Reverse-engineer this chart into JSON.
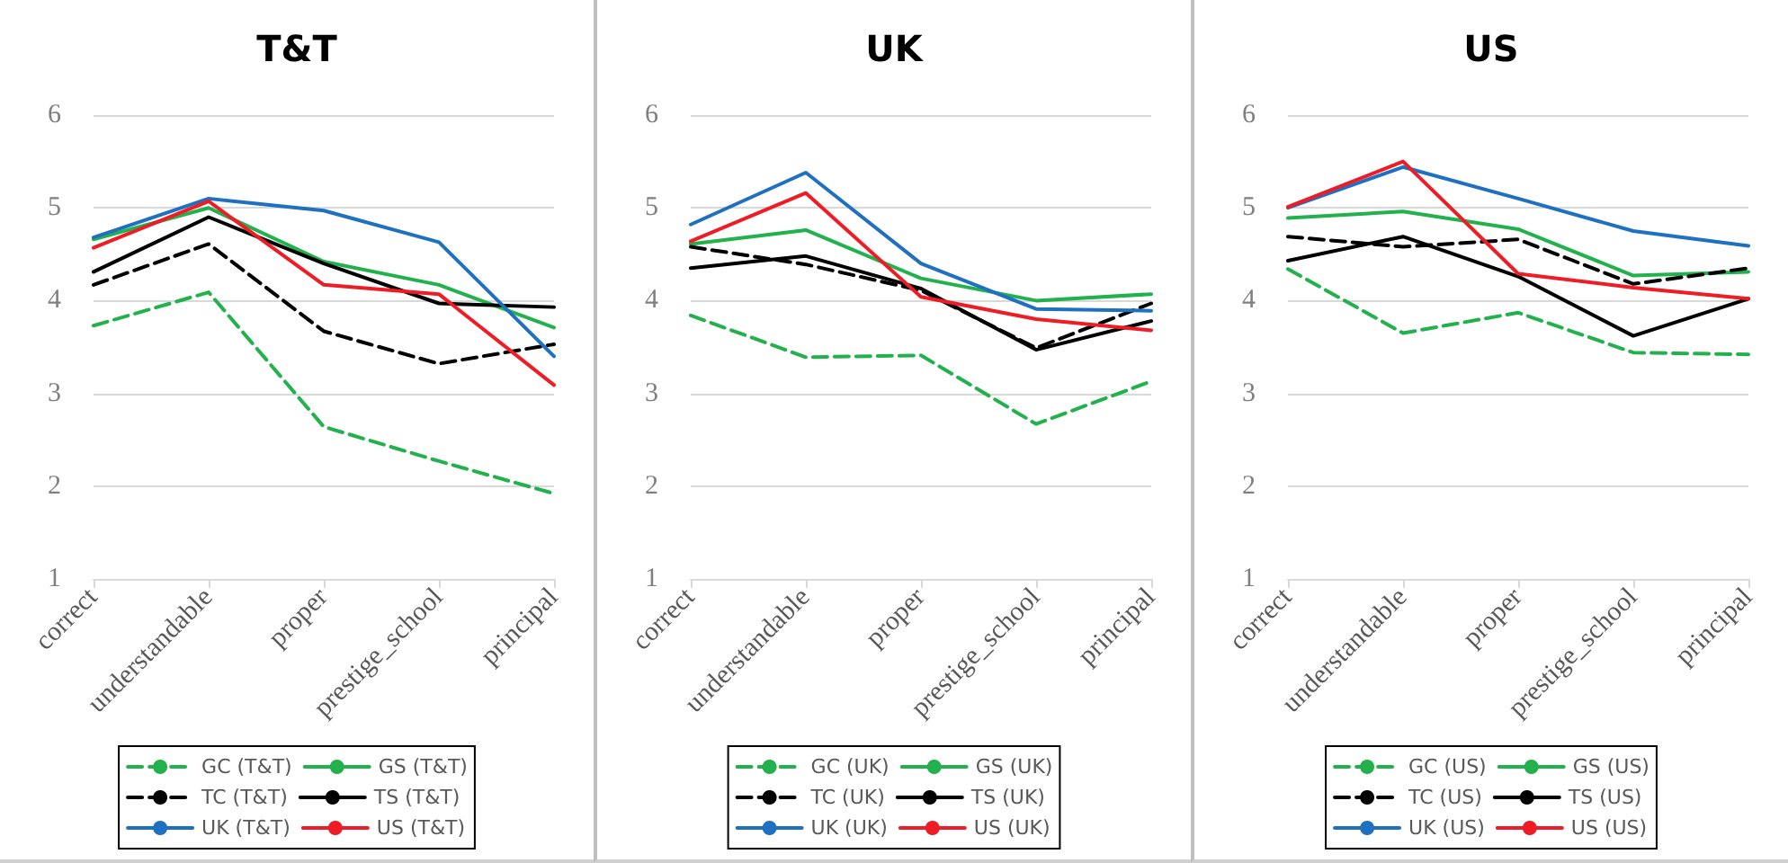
{
  "chart_data": [
    {
      "type": "line",
      "title": "T&T",
      "categories": [
        "correct",
        "understandable",
        "proper",
        "prestige_school",
        "principal"
      ],
      "ylim": [
        1,
        6
      ],
      "yticks": [
        1,
        2,
        3,
        4,
        5,
        6
      ],
      "grid": "y",
      "legend": "bottom",
      "marker": "none",
      "series": [
        {
          "name": "GC (T&T)",
          "color": "#22b14c",
          "line_style": "dashed",
          "values": [
            3.73,
            4.09,
            2.64,
            2.27,
            1.92
          ]
        },
        {
          "name": "GS (T&T)",
          "color": "#22b14c",
          "line_style": "solid",
          "values": [
            4.66,
            5.0,
            4.42,
            4.17,
            3.71
          ]
        },
        {
          "name": "TC (T&T)",
          "color": "#000000",
          "line_style": "dashed",
          "values": [
            4.17,
            4.61,
            3.67,
            3.32,
            3.53
          ]
        },
        {
          "name": "TS (T&T)",
          "color": "#000000",
          "line_style": "solid",
          "values": [
            4.31,
            4.9,
            4.4,
            3.97,
            3.93
          ]
        },
        {
          "name": "UK (T&T)",
          "color": "#1f70c1",
          "line_style": "solid",
          "values": [
            4.68,
            5.1,
            4.97,
            4.63,
            3.4
          ]
        },
        {
          "name": "US (T&T)",
          "color": "#ee1c25",
          "line_style": "solid",
          "values": [
            4.57,
            5.07,
            4.17,
            4.07,
            3.09
          ]
        }
      ]
    },
    {
      "type": "line",
      "title": "UK",
      "categories": [
        "correct",
        "understandable",
        "proper",
        "prestige_school",
        "principal"
      ],
      "ylim": [
        1,
        6
      ],
      "yticks": [
        1,
        2,
        3,
        4,
        5,
        6
      ],
      "grid": "y",
      "legend": "bottom",
      "marker": "none",
      "series": [
        {
          "name": "GC (UK)",
          "color": "#22b14c",
          "line_style": "dashed",
          "values": [
            3.84,
            3.39,
            3.41,
            2.67,
            3.13
          ]
        },
        {
          "name": "GS (UK)",
          "color": "#22b14c",
          "line_style": "solid",
          "values": [
            4.61,
            4.76,
            4.24,
            4.0,
            4.07
          ]
        },
        {
          "name": "TC (UK)",
          "color": "#000000",
          "line_style": "dashed",
          "values": [
            4.58,
            4.39,
            4.11,
            3.49,
            3.97
          ]
        },
        {
          "name": "TS (UK)",
          "color": "#000000",
          "line_style": "solid",
          "values": [
            4.35,
            4.48,
            4.13,
            3.47,
            3.78
          ]
        },
        {
          "name": "UK (UK)",
          "color": "#1f70c1",
          "line_style": "solid",
          "values": [
            4.82,
            5.38,
            4.4,
            3.91,
            3.89
          ]
        },
        {
          "name": "US (UK)",
          "color": "#ee1c25",
          "line_style": "solid",
          "values": [
            4.64,
            5.16,
            4.04,
            3.8,
            3.68
          ]
        }
      ]
    },
    {
      "type": "line",
      "title": "US",
      "categories": [
        "correct",
        "understandable",
        "proper",
        "prestige_school",
        "principal"
      ],
      "ylim": [
        1,
        6
      ],
      "yticks": [
        1,
        2,
        3,
        4,
        5,
        6
      ],
      "grid": "y",
      "legend": "bottom",
      "marker": "none",
      "series": [
        {
          "name": "GC (US)",
          "color": "#22b14c",
          "line_style": "dashed",
          "values": [
            4.34,
            3.65,
            3.87,
            3.44,
            3.42
          ]
        },
        {
          "name": "GS (US)",
          "color": "#22b14c",
          "line_style": "solid",
          "values": [
            4.89,
            4.96,
            4.77,
            4.27,
            4.31
          ]
        },
        {
          "name": "TC (US)",
          "color": "#000000",
          "line_style": "dashed",
          "values": [
            4.69,
            4.58,
            4.66,
            4.18,
            4.35
          ]
        },
        {
          "name": "TS (US)",
          "color": "#000000",
          "line_style": "solid",
          "values": [
            4.43,
            4.69,
            4.26,
            3.62,
            4.02
          ]
        },
        {
          "name": "UK (US)",
          "color": "#1f70c1",
          "line_style": "solid",
          "values": [
            5.0,
            5.44,
            5.1,
            4.75,
            4.59
          ]
        },
        {
          "name": "US (US)",
          "color": "#ee1c25",
          "line_style": "solid",
          "values": [
            5.01,
            5.5,
            4.29,
            4.14,
            4.02
          ]
        }
      ]
    }
  ]
}
